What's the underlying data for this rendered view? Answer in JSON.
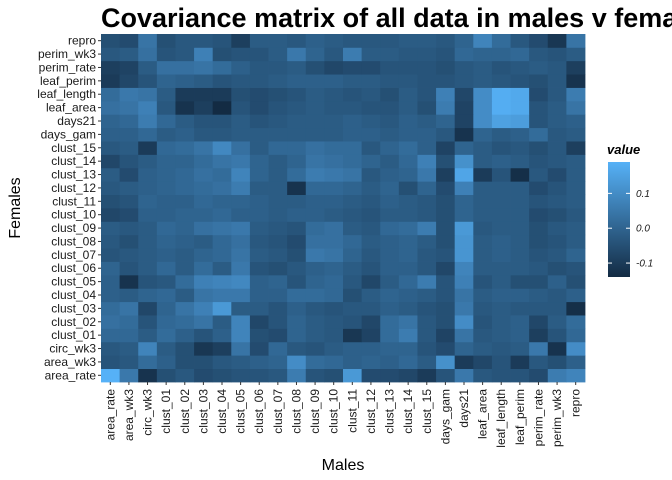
{
  "chart_data": {
    "type": "heatmap",
    "title": "Covariance matrix of all data in males v females",
    "xlabel": "Males",
    "ylabel": "Females",
    "x_categories": [
      "area_rate",
      "area_wk3",
      "circ_wk3",
      "clust_01",
      "clust_02",
      "clust_03",
      "clust_04",
      "clust_05",
      "clust_06",
      "clust_07",
      "clust_08",
      "clust_09",
      "clust_10",
      "clust_11",
      "clust_12",
      "clust_13",
      "clust_14",
      "clust_15",
      "days_gam",
      "days21",
      "leaf_area",
      "leaf_length",
      "leaf_perim",
      "perim_rate",
      "perim_wk3",
      "repro"
    ],
    "y_categories": [
      "area_rate",
      "area_wk3",
      "circ_wk3",
      "clust_01",
      "clust_02",
      "clust_03",
      "clust_04",
      "clust_05",
      "clust_06",
      "clust_07",
      "clust_08",
      "clust_09",
      "clust_10",
      "clust_11",
      "clust_12",
      "clust_13",
      "clust_14",
      "clust_15",
      "days_gam",
      "days21",
      "leaf_area",
      "leaf_length",
      "leaf_perim",
      "perim_rate",
      "perim_wk3",
      "repro"
    ],
    "values": [
      [
        0.19,
        0.05,
        -0.12,
        -0.05,
        -0.03,
        -0.06,
        -0.05,
        -0.04,
        -0.04,
        -0.03,
        0.06,
        -0.04,
        -0.05,
        0.13,
        -0.06,
        -0.06,
        -0.07,
        -0.1,
        -0.04,
        0.05,
        -0.03,
        -0.04,
        -0.04,
        -0.06,
        0.06,
        0.08
      ],
      [
        -0.04,
        -0.03,
        0.02,
        -0.01,
        -0.05,
        -0.05,
        -0.03,
        -0.02,
        -0.01,
        0.0,
        0.1,
        0.02,
        0.01,
        -0.01,
        0.0,
        -0.01,
        0.01,
        -0.02,
        0.11,
        -0.1,
        -0.07,
        -0.04,
        -0.1,
        -0.03,
        -0.05,
        -0.01
      ],
      [
        -0.03,
        -0.02,
        0.08,
        -0.02,
        -0.05,
        -0.11,
        -0.09,
        0.04,
        -0.06,
        0.01,
        -0.03,
        -0.04,
        -0.02,
        -0.01,
        -0.01,
        0.0,
        0.0,
        -0.04,
        -0.06,
        0.0,
        -0.02,
        -0.03,
        -0.02,
        0.05,
        -0.12,
        0.1
      ],
      [
        0.01,
        0.01,
        -0.02,
        0.02,
        -0.01,
        -0.04,
        -0.01,
        0.08,
        -0.05,
        -0.06,
        0.0,
        -0.02,
        -0.03,
        -0.11,
        -0.08,
        0.02,
        0.06,
        -0.03,
        -0.08,
        0.04,
        -0.03,
        -0.02,
        -0.01,
        -0.09,
        -0.04,
        0.01
      ],
      [
        0.03,
        0.02,
        -0.04,
        0.01,
        0.02,
        0.04,
        -0.02,
        0.08,
        -0.07,
        -0.04,
        0.0,
        -0.02,
        -0.03,
        -0.04,
        -0.07,
        0.02,
        0.04,
        -0.03,
        -0.05,
        0.1,
        -0.04,
        -0.02,
        -0.01,
        -0.07,
        -0.02,
        0.02
      ],
      [
        0.02,
        0.04,
        -0.07,
        0.0,
        0.04,
        0.07,
        0.13,
        -0.02,
        -0.02,
        -0.04,
        -0.01,
        -0.03,
        -0.04,
        -0.03,
        -0.03,
        -0.01,
        -0.02,
        -0.04,
        -0.05,
        0.05,
        -0.03,
        -0.02,
        -0.03,
        -0.03,
        -0.03,
        -0.13
      ],
      [
        -0.01,
        -0.02,
        0.0,
        0.01,
        -0.02,
        0.04,
        0.05,
        0.05,
        -0.01,
        -0.01,
        0.02,
        0.02,
        0.01,
        -0.05,
        -0.02,
        0.0,
        -0.01,
        -0.02,
        -0.04,
        0.04,
        -0.02,
        -0.01,
        -0.01,
        -0.02,
        -0.03,
        -0.01
      ],
      [
        -0.01,
        -0.12,
        -0.04,
        -0.03,
        0.02,
        0.07,
        0.08,
        0.09,
        -0.01,
        0.0,
        -0.04,
        0.0,
        0.01,
        -0.03,
        -0.07,
        -0.02,
        0.01,
        0.06,
        -0.04,
        0.07,
        -0.04,
        -0.02,
        -0.05,
        -0.05,
        -0.01,
        -0.05
      ],
      [
        0.0,
        -0.04,
        -0.02,
        0.01,
        -0.02,
        0.02,
        -0.02,
        0.05,
        -0.04,
        -0.05,
        -0.03,
        -0.01,
        0.0,
        -0.02,
        -0.04,
        -0.01,
        -0.01,
        -0.03,
        -0.07,
        0.08,
        -0.02,
        -0.02,
        -0.02,
        -0.03,
        -0.05,
        -0.04
      ],
      [
        -0.04,
        -0.03,
        -0.02,
        -0.01,
        -0.02,
        0.0,
        0.01,
        0.04,
        -0.02,
        -0.03,
        -0.05,
        0.05,
        0.04,
        0.0,
        -0.03,
        -0.01,
        0.0,
        -0.03,
        -0.04,
        0.12,
        -0.02,
        -0.01,
        -0.02,
        -0.04,
        -0.03,
        0.0
      ],
      [
        -0.03,
        -0.05,
        -0.02,
        0.0,
        -0.01,
        -0.02,
        0.01,
        0.03,
        -0.03,
        -0.04,
        -0.06,
        0.03,
        0.03,
        0.01,
        -0.02,
        -0.01,
        0.0,
        -0.02,
        -0.05,
        0.12,
        -0.02,
        -0.01,
        -0.02,
        -0.05,
        -0.04,
        -0.02
      ],
      [
        -0.02,
        -0.03,
        -0.02,
        0.01,
        0.0,
        0.03,
        0.04,
        0.05,
        -0.02,
        -0.03,
        -0.04,
        0.02,
        0.03,
        -0.02,
        -0.03,
        0.01,
        0.02,
        0.06,
        -0.05,
        0.13,
        -0.03,
        -0.02,
        -0.02,
        -0.05,
        -0.03,
        -0.02
      ],
      [
        -0.07,
        -0.06,
        -0.01,
        -0.01,
        0.0,
        0.0,
        0.01,
        -0.01,
        -0.01,
        -0.02,
        -0.01,
        -0.01,
        -0.02,
        -0.03,
        -0.04,
        -0.02,
        -0.02,
        -0.03,
        -0.05,
        0.0,
        -0.02,
        -0.02,
        -0.02,
        -0.06,
        -0.05,
        -0.03
      ],
      [
        -0.05,
        -0.04,
        0.0,
        -0.01,
        -0.01,
        0.01,
        0.0,
        0.0,
        -0.01,
        -0.02,
        -0.02,
        -0.01,
        -0.01,
        -0.02,
        -0.03,
        -0.01,
        -0.02,
        -0.03,
        -0.05,
        0.0,
        -0.02,
        -0.02,
        -0.02,
        -0.04,
        -0.03,
        -0.02
      ],
      [
        -0.03,
        -0.02,
        -0.01,
        0.0,
        0.01,
        0.02,
        0.03,
        0.06,
        -0.02,
        -0.02,
        -0.12,
        0.01,
        0.01,
        0.0,
        -0.02,
        0.0,
        -0.05,
        0.0,
        -0.06,
        0.07,
        -0.02,
        -0.02,
        -0.02,
        -0.06,
        -0.04,
        -0.02
      ],
      [
        -0.02,
        -0.06,
        -0.01,
        0.0,
        0.01,
        0.03,
        0.02,
        0.08,
        0.0,
        -0.02,
        0.02,
        0.06,
        0.05,
        0.04,
        -0.03,
        -0.01,
        0.0,
        0.05,
        -0.09,
        0.16,
        -0.1,
        -0.04,
        -0.13,
        -0.03,
        -0.06,
        -0.02
      ],
      [
        -0.07,
        -0.04,
        -0.02,
        0.0,
        0.0,
        0.02,
        0.04,
        0.05,
        0.0,
        -0.02,
        0.0,
        0.04,
        0.03,
        0.02,
        0.0,
        -0.02,
        0.01,
        0.07,
        -0.05,
        0.11,
        -0.02,
        -0.01,
        -0.02,
        -0.04,
        -0.03,
        -0.02
      ],
      [
        -0.03,
        -0.02,
        -0.1,
        0.01,
        0.02,
        0.04,
        0.09,
        0.03,
        -0.02,
        0.01,
        0.01,
        0.03,
        0.02,
        0.02,
        -0.03,
        0.0,
        0.02,
        -0.01,
        -0.08,
        0.0,
        -0.02,
        -0.04,
        -0.03,
        -0.05,
        -0.03,
        -0.09
      ],
      [
        -0.01,
        -0.01,
        0.01,
        -0.02,
        -0.01,
        -0.03,
        -0.03,
        -0.02,
        -0.02,
        -0.02,
        -0.02,
        -0.02,
        -0.02,
        -0.01,
        -0.01,
        -0.02,
        -0.01,
        -0.01,
        -0.03,
        -0.12,
        0.0,
        -0.02,
        -0.01,
        0.02,
        -0.03,
        -0.02
      ],
      [
        0.0,
        0.01,
        0.06,
        0.01,
        -0.02,
        -0.04,
        -0.04,
        -0.02,
        -0.04,
        -0.03,
        -0.02,
        -0.02,
        -0.02,
        -0.01,
        -0.02,
        -0.03,
        -0.01,
        -0.02,
        0.0,
        -0.08,
        0.1,
        0.15,
        0.14,
        -0.04,
        -0.02,
        -0.01
      ],
      [
        0.03,
        0.04,
        0.07,
        -0.03,
        -0.12,
        -0.09,
        -0.14,
        -0.04,
        -0.06,
        -0.04,
        -0.03,
        -0.02,
        -0.03,
        -0.03,
        -0.04,
        -0.04,
        -0.02,
        -0.05,
        0.06,
        -0.08,
        0.1,
        0.18,
        0.17,
        -0.04,
        -0.02,
        0.04
      ],
      [
        0.02,
        0.05,
        0.04,
        -0.02,
        -0.1,
        -0.1,
        -0.1,
        -0.05,
        -0.06,
        -0.05,
        -0.04,
        -0.02,
        -0.03,
        -0.04,
        -0.03,
        -0.05,
        -0.02,
        -0.04,
        0.07,
        -0.07,
        0.1,
        0.18,
        0.17,
        -0.06,
        -0.03,
        0.06
      ],
      [
        -0.1,
        -0.07,
        -0.04,
        0.0,
        -0.01,
        -0.02,
        -0.04,
        -0.03,
        -0.03,
        -0.02,
        -0.01,
        -0.01,
        -0.01,
        -0.02,
        -0.02,
        -0.03,
        -0.03,
        -0.04,
        -0.04,
        -0.03,
        -0.02,
        -0.03,
        -0.04,
        -0.05,
        -0.03,
        -0.12
      ],
      [
        -0.09,
        -0.08,
        -0.02,
        0.03,
        0.03,
        0.04,
        0.02,
        -0.01,
        -0.03,
        -0.03,
        -0.02,
        -0.05,
        -0.07,
        -0.06,
        -0.06,
        -0.04,
        -0.04,
        -0.04,
        -0.05,
        -0.03,
        -0.02,
        -0.04,
        -0.03,
        -0.02,
        -0.03,
        -0.09
      ],
      [
        -0.03,
        -0.02,
        0.03,
        -0.04,
        -0.03,
        0.07,
        -0.05,
        -0.04,
        -0.04,
        -0.02,
        0.05,
        0.0,
        -0.03,
        0.06,
        -0.02,
        -0.02,
        -0.03,
        -0.03,
        -0.04,
        0.01,
        0.0,
        0.0,
        0.01,
        -0.03,
        -0.04,
        -0.02
      ],
      [
        -0.05,
        -0.06,
        0.04,
        -0.05,
        -0.03,
        -0.03,
        -0.04,
        -0.09,
        -0.02,
        -0.02,
        -0.03,
        -0.01,
        -0.02,
        -0.03,
        -0.03,
        -0.03,
        -0.02,
        -0.02,
        -0.03,
        0.0,
        0.08,
        0.02,
        -0.03,
        -0.06,
        -0.11,
        0.04
      ]
    ],
    "legend": {
      "title": "value",
      "ticks": [
        0.1,
        0.0,
        -0.1
      ],
      "tick_labels": [
        "0.1",
        "0.0",
        "-0.1"
      ],
      "range": [
        -0.14,
        0.19
      ],
      "low_color": "#132b43",
      "high_color": "#56b1f7"
    },
    "grid": false,
    "legend_position": "right"
  }
}
